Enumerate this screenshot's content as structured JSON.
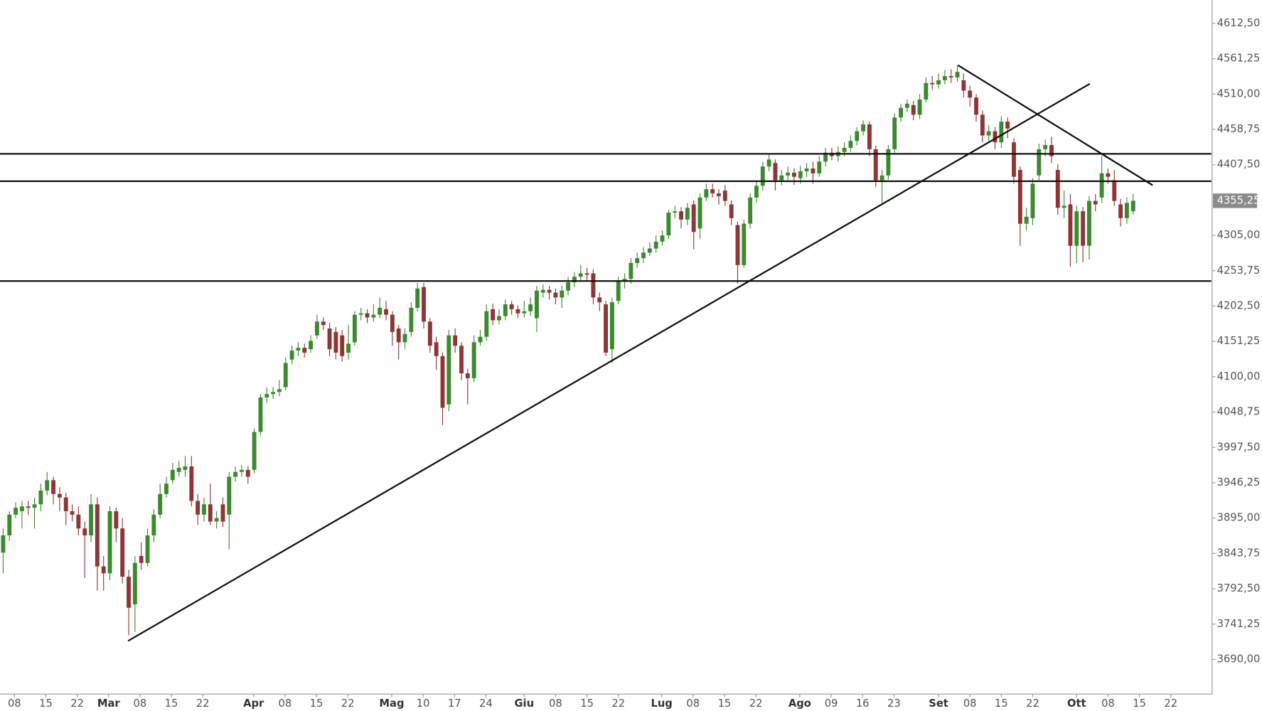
{
  "chart_data": {
    "type": "candlestick",
    "up_color": "#3b8a2e",
    "down_color": "#8e3535",
    "line_color": "#111111",
    "xlim": [
      -0.5,
      192.45
    ],
    "ylim": [
      3639.8,
      4646.4
    ],
    "xticks": [
      {
        "value": 1.8,
        "label": "08"
      },
      {
        "value": 6.8,
        "label": "15"
      },
      {
        "value": 11.8,
        "label": "22"
      },
      {
        "value": 16.8,
        "label": "Mar"
      },
      {
        "value": 21.8,
        "label": "08"
      },
      {
        "value": 26.8,
        "label": "15"
      },
      {
        "value": 31.8,
        "label": "22"
      },
      {
        "value": 39.9,
        "label": "Apr"
      },
      {
        "value": 44.9,
        "label": "08"
      },
      {
        "value": 49.9,
        "label": "15"
      },
      {
        "value": 54.9,
        "label": "22"
      },
      {
        "value": 61.9,
        "label": "Mag"
      },
      {
        "value": 66.9,
        "label": "10"
      },
      {
        "value": 71.9,
        "label": "17"
      },
      {
        "value": 76.9,
        "label": "24"
      },
      {
        "value": 83,
        "label": "Giu"
      },
      {
        "value": 88,
        "label": "08"
      },
      {
        "value": 93,
        "label": "15"
      },
      {
        "value": 98,
        "label": "22"
      },
      {
        "value": 104.9,
        "label": "Lug"
      },
      {
        "value": 109.9,
        "label": "08"
      },
      {
        "value": 114.9,
        "label": "15"
      },
      {
        "value": 119.9,
        "label": "22"
      },
      {
        "value": 126.9,
        "label": "Ago"
      },
      {
        "value": 131.9,
        "label": "09"
      },
      {
        "value": 136.9,
        "label": "16"
      },
      {
        "value": 141.9,
        "label": "23"
      },
      {
        "value": 149,
        "label": "Set"
      },
      {
        "value": 154,
        "label": "08"
      },
      {
        "value": 159,
        "label": "15"
      },
      {
        "value": 164,
        "label": "22"
      },
      {
        "value": 171,
        "label": "Ott"
      },
      {
        "value": 176,
        "label": "08"
      },
      {
        "value": 181,
        "label": "15"
      },
      {
        "value": 186,
        "label": "22"
      }
    ],
    "yticks": [
      {
        "value": 3690,
        "label": "3690,00"
      },
      {
        "value": 3741.25,
        "label": "3741,25"
      },
      {
        "value": 3792.5,
        "label": "3792,50"
      },
      {
        "value": 3843.75,
        "label": "3843,75"
      },
      {
        "value": 3895,
        "label": "3895,00"
      },
      {
        "value": 3946.25,
        "label": "3946,25"
      },
      {
        "value": 3997.5,
        "label": "3997,50"
      },
      {
        "value": 4048.75,
        "label": "4048,75"
      },
      {
        "value": 4100,
        "label": "4100,00"
      },
      {
        "value": 4151.25,
        "label": "4151,25"
      },
      {
        "value": 4202.5,
        "label": "4202,50"
      },
      {
        "value": 4253.75,
        "label": "4253,75"
      },
      {
        "value": 4305,
        "label": "4305,00"
      },
      {
        "value": 4407.5,
        "label": "4407,50"
      },
      {
        "value": 4458.75,
        "label": "4458,75"
      },
      {
        "value": 4510,
        "label": "4510,00"
      },
      {
        "value": 4561.25,
        "label": "4561,25"
      },
      {
        "value": 4612.5,
        "label": "4612,50"
      }
    ],
    "last_price": {
      "value": 4355.25,
      "label": "4355,25"
    },
    "hlines": [
      4423.3,
      4383.6,
      4238.8
    ],
    "trendlines": [
      {
        "x": [
          19.9,
          173.1
        ],
        "y": [
          3716.9,
          4524.9
        ]
      },
      {
        "x": [
          152.1,
          183.1
        ],
        "y": [
          4551.8,
          4377.8
        ]
      }
    ],
    "open": [
      3845,
      3870,
      3900,
      3905,
      3912,
      3910,
      3915,
      3935,
      3950,
      3930,
      3925,
      3905,
      3900,
      3880,
      3870,
      3915,
      3825,
      3815,
      3905,
      3880,
      3810,
      3770,
      3840,
      3830,
      3870,
      3900,
      3930,
      3950,
      3962,
      3965,
      3970,
      3920,
      3900,
      3915,
      3890,
      3915,
      3900,
      3955,
      3962,
      3965,
      3965,
      4020,
      4070,
      4075,
      4078,
      4085,
      4125,
      4138,
      4142,
      4140,
      4160,
      4180,
      4170,
      4165,
      4160,
      4135,
      4150,
      4190,
      4192,
      4186,
      4190,
      4198,
      4190,
      4170,
      4150,
      4165,
      4200,
      4230,
      4180,
      4150,
      4130,
      4060,
      4160,
      4145,
      4105,
      4098,
      4150,
      4158,
      4198,
      4182,
      4188,
      4205,
      4198,
      4192,
      4195,
      4185,
      4222,
      4226,
      4222,
      4215,
      4225,
      4237,
      4245,
      4250,
      4250,
      4215,
      4205,
      4140,
      4210,
      4238,
      4242,
      4265,
      4272,
      4280,
      4286,
      4296,
      4305,
      4338,
      4340,
      4328,
      4350,
      4315,
      4360,
      4372,
      4366,
      4370,
      4350,
      4320,
      4262,
      4322,
      4360,
      4377,
      4405,
      4410,
      4385,
      4392,
      4396,
      4388,
      4398,
      4402,
      4395,
      4412,
      4425,
      4420,
      4426,
      4432,
      4442,
      4456,
      4466,
      4430,
      4385,
      4392,
      4430,
      4476,
      4490,
      4494,
      4480,
      4502,
      4526,
      4524,
      4530,
      4536,
      4534,
      4530,
      4515,
      4505,
      4480,
      4450,
      4456,
      4440,
      4470,
      4440,
      4400,
      4322,
      4330,
      4392,
      4430,
      4436,
      4400,
      4345,
      4350,
      4290,
      4340,
      4290,
      4355,
      4360,
      4395,
      4385,
      4350,
      4330,
      4340
    ],
    "high": [
      3880,
      3905,
      3918,
      3920,
      3920,
      3925,
      3945,
      3962,
      3955,
      3940,
      3932,
      3915,
      3912,
      3890,
      3930,
      3925,
      3840,
      3912,
      3910,
      3895,
      3820,
      3840,
      3860,
      3880,
      3908,
      3945,
      3955,
      3975,
      3978,
      3985,
      3985,
      3930,
      3925,
      3945,
      3905,
      3925,
      3962,
      3970,
      3972,
      3970,
      4025,
      4075,
      4085,
      4085,
      4095,
      4128,
      4145,
      4150,
      4148,
      4160,
      4190,
      4186,
      4178,
      4172,
      4168,
      4175,
      4195,
      4200,
      4198,
      4205,
      4215,
      4210,
      4195,
      4175,
      4170,
      4208,
      4236,
      4236,
      4185,
      4158,
      4135,
      4168,
      4170,
      4150,
      4112,
      4160,
      4168,
      4205,
      4206,
      4198,
      4212,
      4210,
      4204,
      4210,
      4215,
      4232,
      4234,
      4232,
      4228,
      4232,
      4245,
      4252,
      4262,
      4258,
      4256,
      4222,
      4210,
      4215,
      4245,
      4250,
      4272,
      4280,
      4288,
      4295,
      4305,
      4312,
      4342,
      4348,
      4346,
      4352,
      4356,
      4366,
      4380,
      4380,
      4372,
      4378,
      4356,
      4325,
      4328,
      4366,
      4385,
      4412,
      4422,
      4415,
      4400,
      4405,
      4402,
      4406,
      4410,
      4412,
      4420,
      4432,
      4432,
      4434,
      4440,
      4450,
      4462,
      4472,
      4470,
      4435,
      4400,
      4436,
      4482,
      4496,
      4502,
      4500,
      4510,
      4534,
      4536,
      4540,
      4545,
      4546,
      4552,
      4540,
      4522,
      4510,
      4486,
      4465,
      4462,
      4478,
      4476,
      4446,
      4405,
      4345,
      4388,
      4438,
      4444,
      4448,
      4408,
      4370,
      4365,
      4348,
      4346,
      4362,
      4365,
      4420,
      4402,
      4400,
      4358,
      4360,
      4365
    ],
    "low": [
      3815,
      3862,
      3895,
      3880,
      3900,
      3880,
      3905,
      3928,
      3915,
      3905,
      3885,
      3890,
      3870,
      3808,
      3860,
      3790,
      3790,
      3805,
      3860,
      3800,
      3725,
      3730,
      3820,
      3825,
      3860,
      3895,
      3925,
      3945,
      3955,
      3955,
      3912,
      3885,
      3890,
      3885,
      3880,
      3882,
      3850,
      3948,
      3955,
      3945,
      3960,
      4015,
      4062,
      4068,
      4072,
      4080,
      4118,
      4130,
      4128,
      4135,
      4155,
      4168,
      4130,
      4125,
      4122,
      4125,
      4145,
      4182,
      4178,
      4180,
      4185,
      4182,
      4145,
      4125,
      4140,
      4158,
      4195,
      4170,
      4135,
      4110,
      4030,
      4050,
      4135,
      4095,
      4060,
      4092,
      4145,
      4152,
      4175,
      4176,
      4182,
      4190,
      4185,
      4186,
      4188,
      4165,
      4215,
      4212,
      4205,
      4200,
      4218,
      4230,
      4240,
      4238,
      4205,
      4195,
      4130,
      4120,
      4205,
      4228,
      4235,
      4258,
      4265,
      4275,
      4280,
      4290,
      4300,
      4330,
      4315,
      4320,
      4285,
      4300,
      4355,
      4360,
      4350,
      4348,
      4320,
      4235,
      4258,
      4315,
      4352,
      4370,
      4398,
      4370,
      4378,
      4385,
      4378,
      4380,
      4390,
      4380,
      4390,
      4405,
      4414,
      4412,
      4420,
      4426,
      4436,
      4450,
      4420,
      4375,
      4352,
      4386,
      4425,
      4470,
      4484,
      4472,
      4474,
      4498,
      4516,
      4518,
      4524,
      4526,
      4528,
      4505,
      4492,
      4470,
      4440,
      4442,
      4430,
      4432,
      4446,
      4380,
      4290,
      4312,
      4320,
      4385,
      4420,
      4410,
      4335,
      4330,
      4260,
      4265,
      4266,
      4270,
      4340,
      4352,
      4380,
      4348,
      4318,
      4322,
      4335
    ],
    "close": [
      3870,
      3900,
      3910,
      3912,
      3910,
      3915,
      3935,
      3950,
      3930,
      3925,
      3905,
      3900,
      3880,
      3870,
      3915,
      3825,
      3815,
      3905,
      3880,
      3810,
      3765,
      3830,
      3830,
      3870,
      3900,
      3930,
      3945,
      3965,
      3968,
      3970,
      3920,
      3900,
      3915,
      3890,
      3895,
      3890,
      3955,
      3962,
      3965,
      3955,
      4020,
      4070,
      4075,
      4078,
      4082,
      4120,
      4138,
      4142,
      4135,
      4152,
      4180,
      4175,
      4140,
      4135,
      4130,
      4148,
      4190,
      4192,
      4186,
      4190,
      4200,
      4190,
      4165,
      4150,
      4162,
      4200,
      4228,
      4180,
      4145,
      4130,
      4055,
      4160,
      4145,
      4105,
      4098,
      4150,
      4158,
      4195,
      4182,
      4188,
      4205,
      4198,
      4192,
      4195,
      4205,
      4225,
      4226,
      4222,
      4215,
      4225,
      4237,
      4245,
      4250,
      4248,
      4215,
      4208,
      4135,
      4208,
      4238,
      4242,
      4265,
      4272,
      4280,
      4286,
      4296,
      4305,
      4338,
      4340,
      4328,
      4345,
      4310,
      4360,
      4372,
      4366,
      4362,
      4355,
      4330,
      4262,
      4322,
      4360,
      4377,
      4405,
      4415,
      4385,
      4392,
      4396,
      4390,
      4398,
      4402,
      4395,
      4412,
      4425,
      4420,
      4426,
      4432,
      4442,
      4456,
      4466,
      4430,
      4385,
      4392,
      4430,
      4476,
      4490,
      4496,
      4480,
      4502,
      4526,
      4524,
      4530,
      4536,
      4534,
      4542,
      4515,
      4505,
      4480,
      4450,
      4456,
      4440,
      4470,
      4460,
      4390,
      4322,
      4332,
      4380,
      4430,
      4436,
      4420,
      4345,
      4348,
      4290,
      4340,
      4290,
      4355,
      4350,
      4395,
      4390,
      4355,
      4330,
      4352,
      4355.25
    ]
  }
}
